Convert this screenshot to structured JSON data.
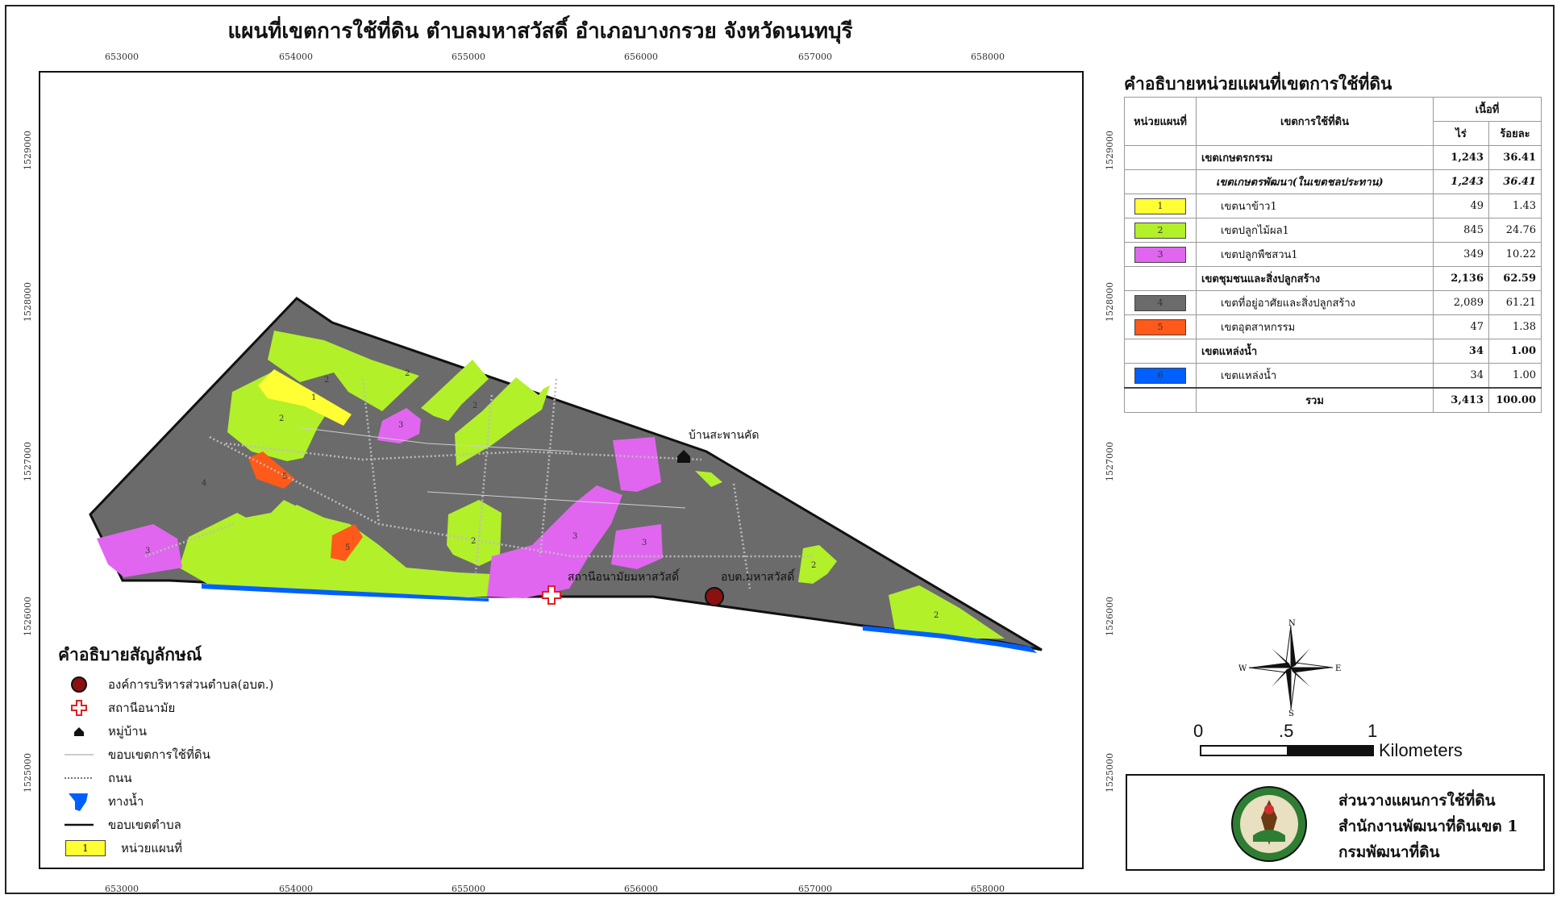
{
  "title": "แผนที่เขตการใช้ที่ดิน ตำบลมหาสวัสดิ์ อำเภอบางกรวย จังหวัดนนทบุรี",
  "grid": {
    "eastings": [
      "653000",
      "654000",
      "655000",
      "656000",
      "657000",
      "658000"
    ],
    "northings": [
      "1528000",
      "1527000",
      "1526000",
      "1525000",
      "1529000"
    ]
  },
  "map": {
    "place_labels": {
      "village": "บ้านสะพานคัด",
      "health_station": "สถานีอนามัยมหาสวัสดิ์",
      "tao": "อบต.มหาสวัสดิ์"
    },
    "unit_labels": [
      "1",
      "2",
      "3",
      "4",
      "5",
      "6"
    ],
    "colors": {
      "rice": "#ffff33",
      "orchard": "#b2f02a",
      "mixed": "#e066f0",
      "residential": "#6b6b6b",
      "industrial": "#ff5a1a",
      "water": "#0060ff",
      "tao_symbol": "#8b1010",
      "health_symbol": "#e02020"
    }
  },
  "legend": {
    "title": "คำอธิบายสัญลักษณ์",
    "items": [
      {
        "label": "องค์การบริหารส่วนตำบล(อบต.)",
        "icon": "tao-circle-icon"
      },
      {
        "label": "สถานีอนามัย",
        "icon": "health-cross-icon"
      },
      {
        "label": "หมู่บ้าน",
        "icon": "village-house-icon"
      },
      {
        "label": "ขอบเขตการใช้ที่ดิน",
        "icon": "landuse-boundary-line"
      },
      {
        "label": "ถนน",
        "icon": "road-line"
      },
      {
        "label": "ทางน้ำ",
        "icon": "waterway-icon"
      },
      {
        "label": "ขอบเขตตำบล",
        "icon": "subdistrict-boundary-line"
      },
      {
        "label": "หน่วยแผนที่",
        "unit": "1",
        "icon": "map-unit-box"
      }
    ]
  },
  "table": {
    "title": "คำอธิบายหน่วยแผนที่เขตการใช้ที่ดิน",
    "headers": {
      "unit": "หน่วยแผนที่",
      "zone": "เขตการใช้ที่ดิน",
      "area": "เนื้อที่",
      "rai": "ไร่",
      "percent": "ร้อยละ"
    },
    "rows": [
      {
        "unit": "",
        "zone": "เขตเกษตรกรรม",
        "rai": "1,243",
        "percent": "36.41",
        "style": "bold"
      },
      {
        "unit": "",
        "zone": "เขตเกษตรพัฒนา(ในเขตชลประทาน)",
        "rai": "1,243",
        "percent": "36.41",
        "style": "italic"
      },
      {
        "unit": "1",
        "zone": "เขตนาข้าว1",
        "rai": "49",
        "percent": "1.43",
        "color": "#ffff33"
      },
      {
        "unit": "2",
        "zone": "เขตปลูกไม้ผล1",
        "rai": "845",
        "percent": "24.76",
        "color": "#b2f02a"
      },
      {
        "unit": "3",
        "zone": "เขตปลูกพืชสวน1",
        "rai": "349",
        "percent": "10.22",
        "color": "#e066f0"
      },
      {
        "unit": "",
        "zone": "เขตชุมชนและสิ่งปลูกสร้าง",
        "rai": "2,136",
        "percent": "62.59",
        "style": "bold"
      },
      {
        "unit": "4",
        "zone": "เขตที่อยู่อาศัยและสิ่งปลูกสร้าง",
        "rai": "2,089",
        "percent": "61.21",
        "color": "#6b6b6b"
      },
      {
        "unit": "5",
        "zone": "เขตอุตสาหกรรม",
        "rai": "47",
        "percent": "1.38",
        "color": "#ff5a1a"
      },
      {
        "unit": "",
        "zone": "เขตแหล่งน้ำ",
        "rai": "34",
        "percent": "1.00",
        "style": "bold"
      },
      {
        "unit": "6",
        "zone": "เขตแหล่งน้ำ",
        "rai": "34",
        "percent": "1.00",
        "color": "#0060ff"
      },
      {
        "unit": "",
        "zone": "รวม",
        "rai": "3,413",
        "percent": "100.00",
        "style": "total"
      }
    ]
  },
  "north_arrow": {
    "n": "N",
    "s": "S",
    "e": "E",
    "w": "W"
  },
  "scale": {
    "ticks": [
      "0",
      ".5",
      "1"
    ],
    "unit": "Kilometers"
  },
  "office": {
    "lines": [
      "ส่วนวางแผนการใช้ที่ดิน",
      "สำนักงานพัฒนาที่ดินเขต 1",
      "กรมพัฒนาที่ดิน"
    ]
  }
}
